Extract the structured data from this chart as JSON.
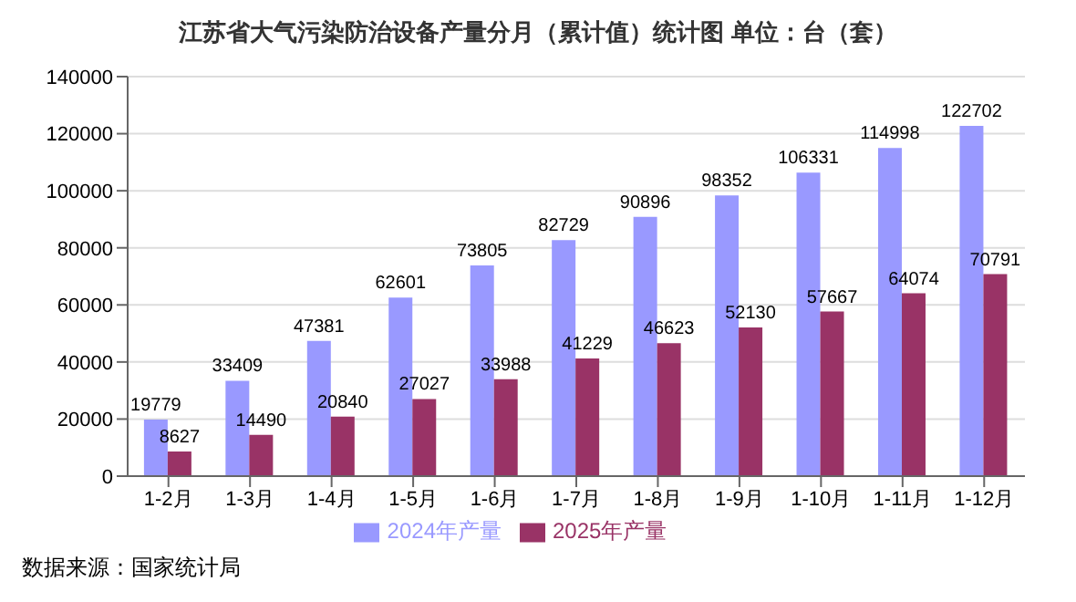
{
  "chart_data": {
    "type": "bar",
    "title": "江苏省大气污染防治设备产量分月（累计值）统计图 单位：台（套）",
    "categories": [
      "1-2月",
      "1-3月",
      "1-4月",
      "1-5月",
      "1-6月",
      "1-7月",
      "1-8月",
      "1-9月",
      "1-10月",
      "1-11月",
      "1-12月"
    ],
    "series": [
      {
        "name": "2024年产量",
        "color": "#9999ff",
        "values": [
          19779,
          33409,
          47381,
          62601,
          73805,
          82729,
          90896,
          98352,
          106331,
          114998,
          122702
        ]
      },
      {
        "name": "2025年产量",
        "color": "#993366",
        "values": [
          8627,
          14490,
          20840,
          27027,
          33988,
          41229,
          46623,
          52130,
          57667,
          64074,
          70791
        ]
      }
    ],
    "ylim": [
      0,
      140000
    ],
    "yticks": [
      0,
      20000,
      40000,
      60000,
      80000,
      100000,
      120000,
      140000
    ],
    "grid": "y",
    "legend": "bottom",
    "data_labels": true,
    "annotations": [
      "数据来源：国家统计局"
    ]
  }
}
